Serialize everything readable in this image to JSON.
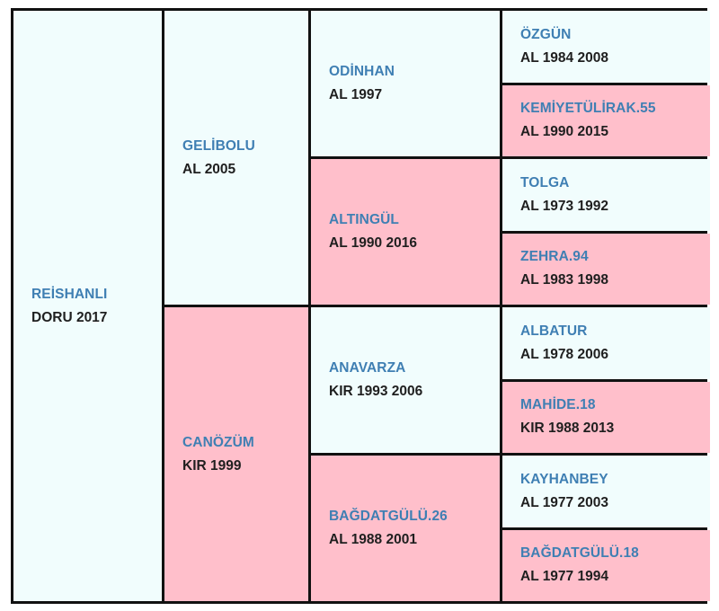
{
  "horse": {
    "name": "REİSHANLI",
    "info": "DORU 2017"
  },
  "sire": {
    "name": "GELİBOLU",
    "info": "AL 2005"
  },
  "dam": {
    "name": "CANÖZÜM",
    "info": "KIR 1999"
  },
  "sire_sire": {
    "name": "ODİNHAN",
    "info": "AL 1997"
  },
  "sire_dam": {
    "name": "ALTINGÜL",
    "info": "AL 1990 2016"
  },
  "dam_sire": {
    "name": "ANAVARZA",
    "info": "KIR 1993 2006"
  },
  "dam_dam": {
    "name": "BAĞDATGÜLÜ.26",
    "info": "AL 1988 2001"
  },
  "gen4": [
    {
      "name": "ÖZGÜN",
      "info": "AL 1984 2008"
    },
    {
      "name": "KEMİYETÜLİRAK.55",
      "info": "AL 1990 2015"
    },
    {
      "name": "TOLGA",
      "info": "AL 1973 1992"
    },
    {
      "name": "ZEHRA.94",
      "info": "AL 1983 1998"
    },
    {
      "name": "ALBATUR",
      "info": "AL 1978 2006"
    },
    {
      "name": "MAHİDE.18",
      "info": "KIR 1988 2013"
    },
    {
      "name": "KAYHANBEY",
      "info": "AL 1977 2003"
    },
    {
      "name": "BAĞDATGÜLÜ.18",
      "info": "AL 1977 1994"
    }
  ],
  "colors": {
    "male_bg": "#f1fdfd",
    "female_bg": "#ffbfcb",
    "name_text": "#3f7fb3",
    "info_text": "#1f1f1f",
    "border": "#111111"
  }
}
